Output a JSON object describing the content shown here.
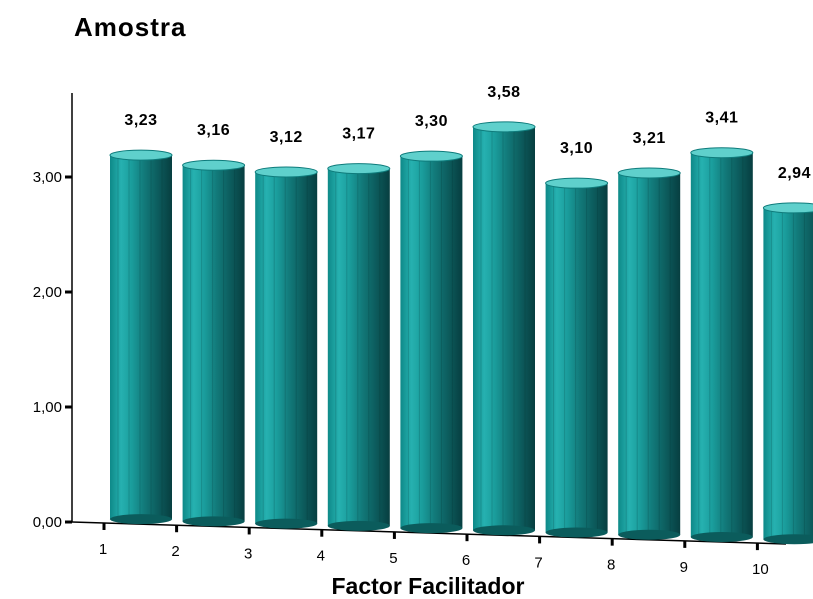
{
  "chart_data": {
    "type": "bar",
    "style": "3d-cylinder",
    "title": "Amostra",
    "xlabel": "Factor Facilitador",
    "ylabel": "",
    "categories": [
      "1",
      "2",
      "3",
      "4",
      "5",
      "6",
      "7",
      "8",
      "9",
      "10"
    ],
    "values": [
      3.23,
      3.16,
      3.12,
      3.17,
      3.3,
      3.58,
      3.1,
      3.21,
      3.41,
      2.94
    ],
    "value_labels": [
      "3,23",
      "3,16",
      "3,12",
      "3,17",
      "3,30",
      "3,58",
      "3,10",
      "3,21",
      "3,41",
      "2,94"
    ],
    "y_ticks": [
      0,
      1,
      2,
      3
    ],
    "y_tick_labels": [
      "0,00",
      "1,00",
      "2,00",
      "3,00"
    ],
    "ylim": [
      0,
      3.6
    ],
    "grid": false,
    "colors": {
      "bar_light": "#2ab3b3",
      "bar_mid": "#13908f",
      "bar_dark": "#0b4f50",
      "bar_top": "#5fd6d2"
    }
  }
}
